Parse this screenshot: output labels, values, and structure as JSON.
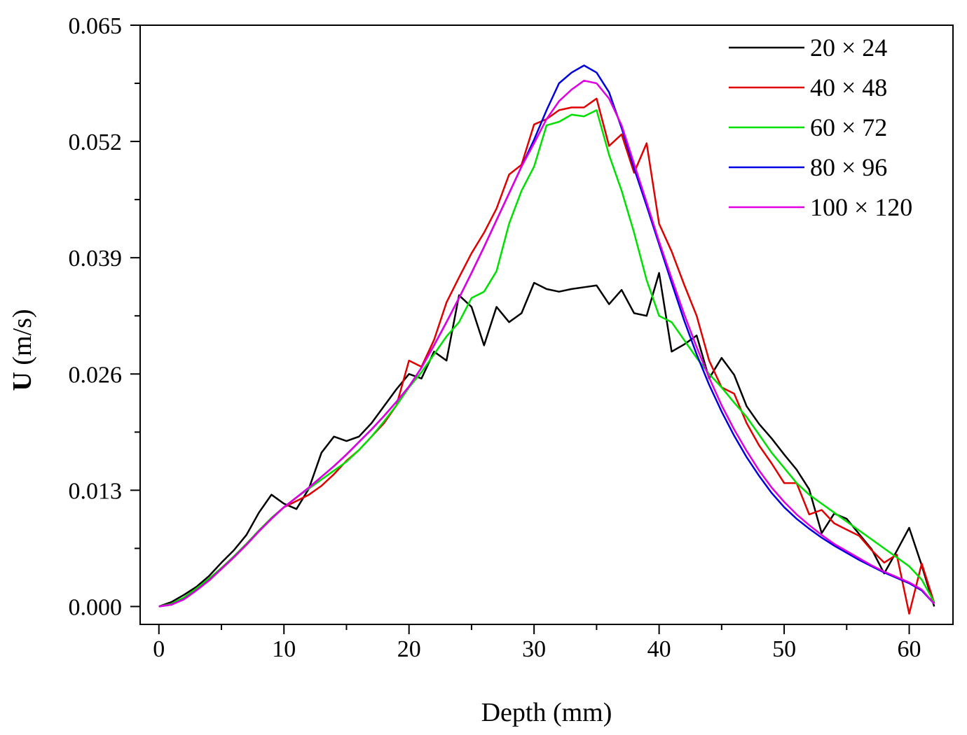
{
  "chart_data": {
    "type": "line",
    "xlabel": "Depth (mm)",
    "ylabel_bold": "U",
    "ylabel_rest": " (m/s)",
    "xlim": [
      -1.5,
      63.5
    ],
    "ylim": [
      -0.002,
      0.065
    ],
    "xticks": [
      0,
      10,
      20,
      30,
      40,
      50,
      60
    ],
    "xtick_labels": [
      "0",
      "10",
      "20",
      "30",
      "40",
      "50",
      "60"
    ],
    "yticks": [
      0.0,
      0.013,
      0.026,
      0.039,
      0.052,
      0.065
    ],
    "ytick_labels": [
      "0.000",
      "0.013",
      "0.026",
      "0.039",
      "0.052",
      "0.065"
    ],
    "legend_position": "top-right",
    "series": [
      {
        "name": "20 × 24",
        "color": "#000000",
        "x": [
          0,
          1,
          2,
          3,
          4,
          5,
          6,
          7,
          8,
          9,
          10,
          11,
          12,
          13,
          14,
          15,
          16,
          17,
          18,
          19,
          20,
          21,
          22,
          23,
          24,
          25,
          26,
          27,
          28,
          29,
          30,
          31,
          32,
          33,
          34,
          35,
          36,
          37,
          38,
          39,
          40,
          41,
          42,
          43,
          44,
          45,
          46,
          47,
          48,
          49,
          50,
          51,
          52,
          53,
          54,
          55,
          56,
          57,
          58,
          59,
          60,
          61,
          62
        ],
        "values": [
          0.0,
          0.0005,
          0.0013,
          0.0022,
          0.0034,
          0.0049,
          0.0063,
          0.008,
          0.0105,
          0.0125,
          0.0115,
          0.0109,
          0.0132,
          0.0172,
          0.019,
          0.0185,
          0.019,
          0.0205,
          0.0224,
          0.0243,
          0.026,
          0.0255,
          0.0285,
          0.0275,
          0.0348,
          0.0335,
          0.0292,
          0.0335,
          0.0318,
          0.0328,
          0.0362,
          0.0355,
          0.0352,
          0.0355,
          0.0357,
          0.0359,
          0.0338,
          0.0354,
          0.0328,
          0.0325,
          0.0373,
          0.0285,
          0.0293,
          0.0303,
          0.0255,
          0.0278,
          0.0259,
          0.0224,
          0.0204,
          0.0188,
          0.017,
          0.0153,
          0.0131,
          0.0082,
          0.0104,
          0.0098,
          0.0081,
          0.0064,
          0.0037,
          0.0062,
          0.0088,
          0.0046,
          0.0
        ]
      },
      {
        "name": "40 × 48",
        "color": "#e00000",
        "x": [
          0,
          1,
          2,
          3,
          4,
          5,
          6,
          7,
          8,
          9,
          10,
          11,
          12,
          13,
          14,
          15,
          16,
          17,
          18,
          19,
          20,
          21,
          22,
          23,
          24,
          25,
          26,
          27,
          28,
          29,
          30,
          31,
          32,
          33,
          34,
          35,
          36,
          37,
          38,
          39,
          40,
          41,
          42,
          43,
          44,
          45,
          46,
          47,
          48,
          49,
          50,
          51,
          52,
          53,
          54,
          55,
          56,
          57,
          58,
          59,
          60,
          61,
          62
        ],
        "values": [
          0.0,
          0.0003,
          0.001,
          0.002,
          0.0031,
          0.0043,
          0.0056,
          0.007,
          0.0085,
          0.0099,
          0.0111,
          0.0118,
          0.0125,
          0.0135,
          0.0148,
          0.0163,
          0.0175,
          0.019,
          0.0205,
          0.0225,
          0.0275,
          0.0268,
          0.0298,
          0.034,
          0.0368,
          0.0395,
          0.0418,
          0.0445,
          0.0483,
          0.0494,
          0.0539,
          0.0545,
          0.0555,
          0.0558,
          0.0558,
          0.0568,
          0.0515,
          0.0528,
          0.0485,
          0.0518,
          0.0428,
          0.0397,
          0.036,
          0.0325,
          0.0275,
          0.0245,
          0.0238,
          0.0205,
          0.018,
          0.016,
          0.0138,
          0.0138,
          0.0103,
          0.0108,
          0.0093,
          0.0086,
          0.0079,
          0.0063,
          0.0049,
          0.0058,
          -0.0008,
          0.0048,
          0.0004
        ]
      },
      {
        "name": "60 × 72",
        "color": "#00e000",
        "x": [
          0,
          1,
          2,
          3,
          4,
          5,
          6,
          7,
          8,
          9,
          10,
          11,
          12,
          13,
          14,
          15,
          16,
          17,
          18,
          19,
          20,
          21,
          22,
          23,
          24,
          25,
          26,
          27,
          28,
          29,
          30,
          31,
          32,
          33,
          34,
          35,
          36,
          37,
          38,
          39,
          40,
          41,
          42,
          43,
          44,
          45,
          46,
          47,
          48,
          49,
          50,
          51,
          52,
          53,
          54,
          55,
          56,
          57,
          58,
          59,
          60,
          61,
          62
        ],
        "values": [
          0.0,
          0.0003,
          0.001,
          0.002,
          0.0031,
          0.0043,
          0.0056,
          0.007,
          0.0085,
          0.0099,
          0.0111,
          0.0122,
          0.0132,
          0.0142,
          0.0152,
          0.0162,
          0.0175,
          0.019,
          0.0207,
          0.0225,
          0.0245,
          0.0262,
          0.0282,
          0.0302,
          0.0318,
          0.0345,
          0.0352,
          0.0375,
          0.0428,
          0.0465,
          0.0492,
          0.0538,
          0.0542,
          0.055,
          0.0548,
          0.0555,
          0.0505,
          0.0465,
          0.0418,
          0.0365,
          0.0325,
          0.0318,
          0.0298,
          0.0278,
          0.026,
          0.0245,
          0.0228,
          0.0212,
          0.0192,
          0.0172,
          0.0155,
          0.0138,
          0.0125,
          0.0115,
          0.0105,
          0.0095,
          0.0085,
          0.0075,
          0.0065,
          0.0055,
          0.0045,
          0.003,
          0.0005
        ]
      },
      {
        "name": "80 × 96",
        "color": "#0000e0",
        "x": [
          0,
          1,
          2,
          3,
          4,
          5,
          6,
          7,
          8,
          9,
          10,
          11,
          12,
          13,
          14,
          15,
          16,
          17,
          18,
          19,
          20,
          21,
          22,
          23,
          24,
          25,
          26,
          27,
          28,
          29,
          30,
          31,
          32,
          33,
          34,
          35,
          36,
          37,
          38,
          39,
          40,
          41,
          42,
          43,
          44,
          45,
          46,
          47,
          48,
          49,
          50,
          51,
          52,
          53,
          54,
          55,
          56,
          57,
          58,
          59,
          60,
          61,
          62
        ],
        "values": [
          0.0,
          0.0002,
          0.0008,
          0.0018,
          0.0029,
          0.0042,
          0.0055,
          0.0069,
          0.0084,
          0.0098,
          0.0111,
          0.0122,
          0.0133,
          0.0145,
          0.0157,
          0.017,
          0.0184,
          0.0198,
          0.0213,
          0.0229,
          0.0246,
          0.0267,
          0.0292,
          0.0318,
          0.0345,
          0.0373,
          0.0402,
          0.0432,
          0.0462,
          0.0492,
          0.0522,
          0.0555,
          0.0585,
          0.0597,
          0.0605,
          0.0597,
          0.0575,
          0.0535,
          0.049,
          0.0448,
          0.0405,
          0.0362,
          0.032,
          0.0282,
          0.0248,
          0.0218,
          0.0191,
          0.0167,
          0.0146,
          0.0127,
          0.0111,
          0.0098,
          0.0087,
          0.0077,
          0.0068,
          0.006,
          0.0052,
          0.0045,
          0.0038,
          0.0032,
          0.0026,
          0.0018,
          0.0003
        ]
      },
      {
        "name": "100 × 120",
        "color": "#e000e0",
        "x": [
          0,
          1,
          2,
          3,
          4,
          5,
          6,
          7,
          8,
          9,
          10,
          11,
          12,
          13,
          14,
          15,
          16,
          17,
          18,
          19,
          20,
          21,
          22,
          23,
          24,
          25,
          26,
          27,
          28,
          29,
          30,
          31,
          32,
          33,
          34,
          35,
          36,
          37,
          38,
          39,
          40,
          41,
          42,
          43,
          44,
          45,
          46,
          47,
          48,
          49,
          50,
          51,
          52,
          53,
          54,
          55,
          56,
          57,
          58,
          59,
          60,
          61,
          62
        ],
        "values": [
          0.0,
          0.0002,
          0.0008,
          0.0018,
          0.0029,
          0.0042,
          0.0055,
          0.0069,
          0.0084,
          0.0098,
          0.0111,
          0.0122,
          0.0133,
          0.0145,
          0.0157,
          0.017,
          0.0184,
          0.0198,
          0.0213,
          0.0229,
          0.0246,
          0.0267,
          0.0292,
          0.0318,
          0.0345,
          0.0373,
          0.0402,
          0.0432,
          0.0462,
          0.0492,
          0.0518,
          0.0545,
          0.0565,
          0.0578,
          0.0588,
          0.0585,
          0.0568,
          0.0538,
          0.0495,
          0.0452,
          0.0408,
          0.0367,
          0.0327,
          0.029,
          0.0256,
          0.0225,
          0.0198,
          0.0174,
          0.0152,
          0.0133,
          0.0117,
          0.0103,
          0.0091,
          0.008,
          0.007,
          0.0062,
          0.0054,
          0.0046,
          0.0039,
          0.0033,
          0.0027,
          0.0019,
          0.0003
        ]
      }
    ]
  }
}
